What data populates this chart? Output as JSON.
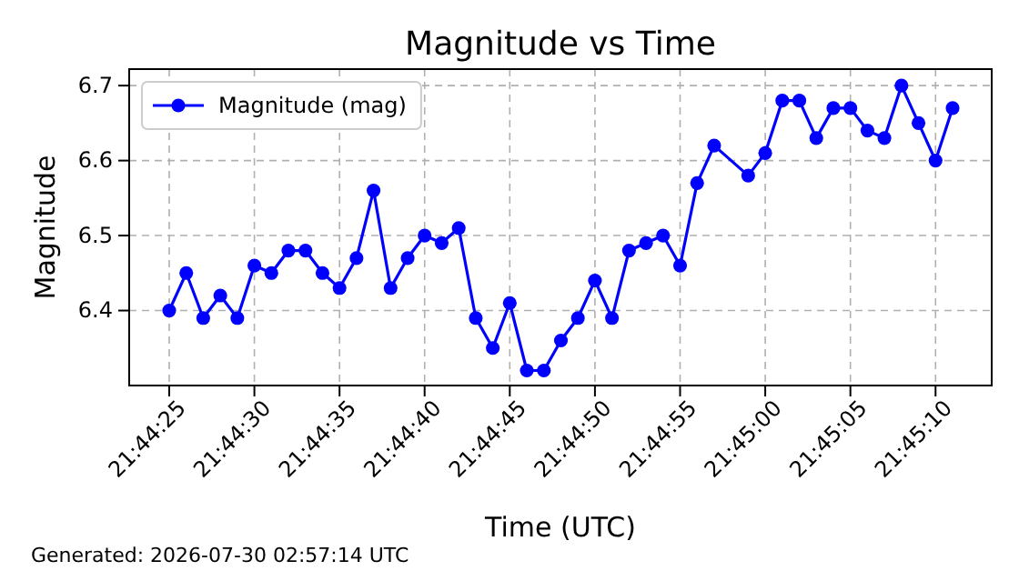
{
  "chart_data": {
    "type": "line",
    "title": "Magnitude vs Time",
    "xlabel": "Time (UTC)",
    "ylabel": "Magnitude",
    "x": [
      21.740278,
      21.740556,
      21.740833,
      21.741111,
      21.741389,
      21.741667,
      21.741944,
      21.742222,
      21.7425,
      21.742778,
      21.743056,
      21.743333,
      21.743611,
      21.743889,
      21.744167,
      21.744444,
      21.744722,
      21.745,
      21.745278,
      21.745556,
      21.745833,
      21.746111,
      21.746389,
      21.746667,
      21.746944,
      21.747222,
      21.7475,
      21.747778,
      21.748056,
      21.748333,
      21.748611,
      21.748889,
      21.749167,
      21.749722,
      21.75,
      21.750278,
      21.750556,
      21.750833,
      21.751111,
      21.751389,
      21.751667,
      21.751944,
      21.752222,
      21.7525,
      21.752778,
      21.753056
    ],
    "series": [
      {
        "name": "Magnitude (mag)",
        "color": "#0000ff",
        "values": [
          6.4,
          6.45,
          6.39,
          6.42,
          6.39,
          6.46,
          6.45,
          6.48,
          6.48,
          6.45,
          6.43,
          6.47,
          6.56,
          6.43,
          6.47,
          6.5,
          6.49,
          6.51,
          6.39,
          6.35,
          6.41,
          6.32,
          6.32,
          6.36,
          6.39,
          6.44,
          6.39,
          6.48,
          6.49,
          6.5,
          6.46,
          6.57,
          6.62,
          6.58,
          6.61,
          6.68,
          6.68,
          6.63,
          6.67,
          6.67,
          6.64,
          6.63,
          6.7,
          6.65,
          6.6,
          6.67
        ]
      }
    ],
    "xlim": [
      21.739625,
      21.753694
    ],
    "xticks": [
      {
        "value": 21.740278,
        "label": "21:44:25"
      },
      {
        "value": 21.741667,
        "label": "21:44:30"
      },
      {
        "value": 21.743056,
        "label": "21:44:35"
      },
      {
        "value": 21.744444,
        "label": "21:44:40"
      },
      {
        "value": 21.745833,
        "label": "21:44:45"
      },
      {
        "value": 21.747222,
        "label": "21:44:50"
      },
      {
        "value": 21.748611,
        "label": "21:44:55"
      },
      {
        "value": 21.75,
        "label": "21:45:00"
      },
      {
        "value": 21.751389,
        "label": "21:45:05"
      },
      {
        "value": 21.752778,
        "label": "21:45:10"
      }
    ],
    "ylim": [
      6.3,
      6.722
    ],
    "yticks": [
      6.4,
      6.5,
      6.6,
      6.7
    ],
    "annotations": [
      "Generated: 2026-07-30 02:57:14 UTC"
    ],
    "grid": true,
    "legend": "top left",
    "marker": "circle",
    "line_style": "solid"
  }
}
